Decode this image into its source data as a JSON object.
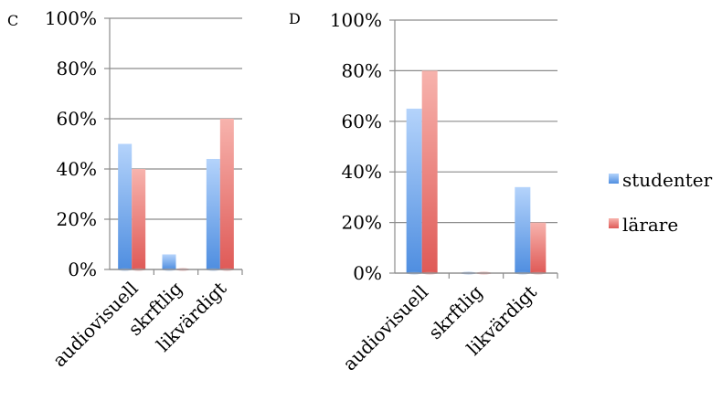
{
  "legend": [
    {
      "name": "studenter",
      "color": "#5b9bd5"
    },
    {
      "name": "lärare",
      "color": "#e06666"
    }
  ],
  "chart_data": [
    {
      "type": "bar",
      "panel_label": "C",
      "categories": [
        "audiovisuell",
        "skrftlig",
        "likvärdigt"
      ],
      "series": [
        {
          "name": "studenter",
          "values": [
            50,
            6,
            44
          ]
        },
        {
          "name": "lärare",
          "values": [
            40,
            0,
            60
          ]
        }
      ],
      "ylim": [
        0,
        100
      ],
      "yticks": [
        "0%",
        "20%",
        "40%",
        "60%",
        "80%",
        "100%"
      ],
      "grid": true,
      "legend": "right"
    },
    {
      "type": "bar",
      "panel_label": "D",
      "categories": [
        "audiovisuell",
        "skrftlig",
        "likvärdigt"
      ],
      "series": [
        {
          "name": "studenter",
          "values": [
            65,
            0,
            34
          ]
        },
        {
          "name": "lärare",
          "values": [
            80,
            0,
            20
          ]
        }
      ],
      "ylim": [
        0,
        100
      ],
      "yticks": [
        "0%",
        "20%",
        "40%",
        "60%",
        "80%",
        "100%"
      ],
      "grid": true,
      "legend": "right"
    }
  ]
}
